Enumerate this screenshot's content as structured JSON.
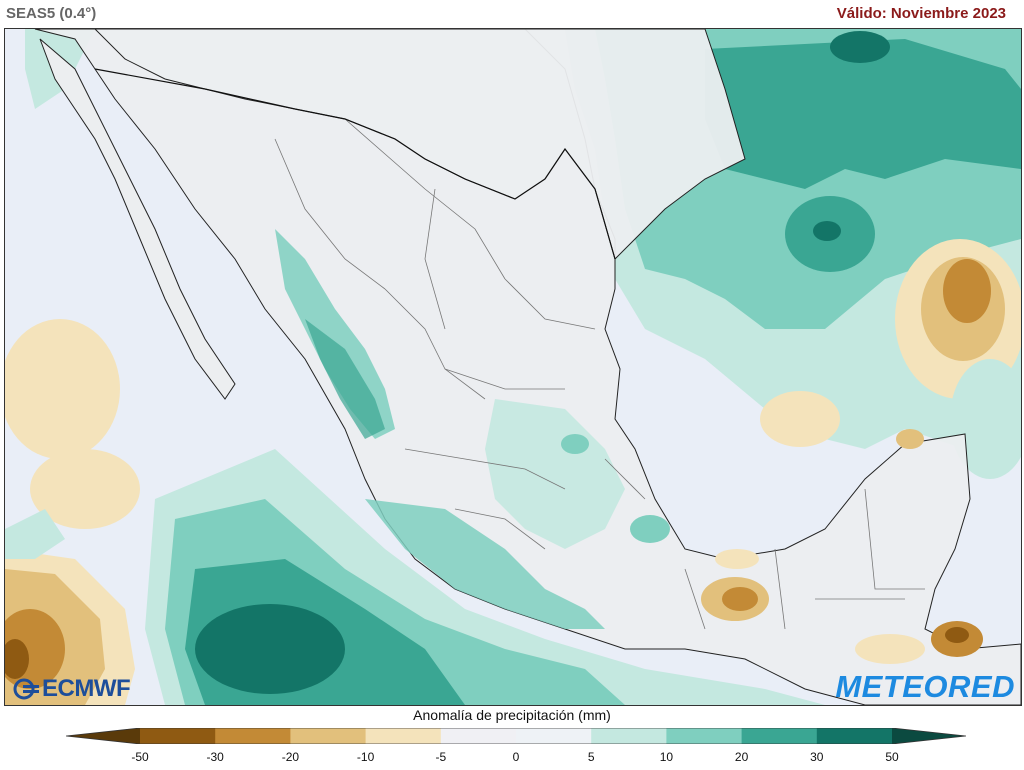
{
  "header": {
    "model": "SEAS5 (0.4°)",
    "valid": "Válido: Noviembre 2023"
  },
  "logos": {
    "left": "ECMWF",
    "right": "METEORED"
  },
  "legend": {
    "title": "Anomalía de precipitación (mm)",
    "ticks": [
      "-50",
      "-30",
      "-20",
      "-10",
      "-5",
      "0",
      "5",
      "10",
      "20",
      "30",
      "50"
    ],
    "colors": [
      "#5a3a0a",
      "#8f5a12",
      "#c38a36",
      "#e2c07c",
      "#f4e3bb",
      "#f0f0f4",
      "#eef2f6",
      "#c4e8e0",
      "#7fcfbf",
      "#3aa693",
      "#137567",
      "#0b4a40"
    ]
  },
  "map": {
    "region": "Mexico",
    "palette": {
      "land": "#eceef0",
      "ocean_base": "#e9eef7",
      "wet_light": "#c4e8e0",
      "wet_mid": "#7fcfbf",
      "wet_strong": "#3aa693",
      "wet_vstrong": "#137567",
      "dry_light": "#f4e3bb",
      "dry_mid": "#e2c07c",
      "dry_strong": "#c38a36",
      "dry_vstrong": "#8f5a12"
    }
  }
}
